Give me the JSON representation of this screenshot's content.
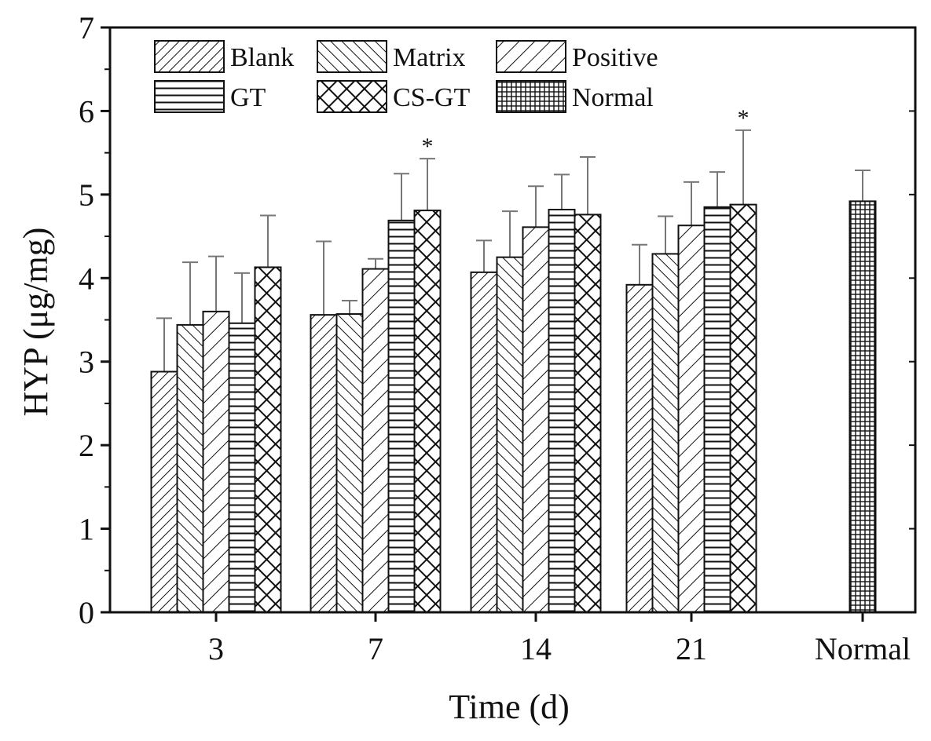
{
  "chart_data": {
    "type": "bar",
    "title": "",
    "xlabel": "Time (d)",
    "ylabel": "HYP (μg/mg)",
    "ylim": [
      0,
      7
    ],
    "yticks": [
      "0",
      "1",
      "2",
      "3",
      "4",
      "5",
      "6",
      "7"
    ],
    "categories": [
      "3",
      "7",
      "14",
      "21",
      "Normal"
    ],
    "legend_position": "top-left",
    "series": [
      {
        "name": "Blank",
        "pattern": "diag-right",
        "values": [
          2.88,
          3.56,
          4.07,
          3.92,
          null
        ],
        "errors": [
          0.64,
          0.88,
          0.38,
          0.48,
          null
        ]
      },
      {
        "name": "Matrix",
        "pattern": "diag-left",
        "values": [
          3.44,
          3.57,
          4.25,
          4.29,
          null
        ],
        "errors": [
          0.75,
          0.16,
          0.55,
          0.45,
          null
        ]
      },
      {
        "name": "Positive",
        "pattern": "diag-right-sparse",
        "values": [
          3.6,
          4.11,
          4.61,
          4.63,
          null
        ],
        "errors": [
          0.66,
          0.12,
          0.49,
          0.52,
          null
        ]
      },
      {
        "name": "GT",
        "pattern": "horizontal",
        "values": [
          3.46,
          4.69,
          4.82,
          4.85,
          null
        ],
        "errors": [
          0.6,
          0.56,
          0.42,
          0.42,
          null
        ]
      },
      {
        "name": "CS-GT",
        "pattern": "crosshatch",
        "values": [
          4.13,
          4.81,
          4.76,
          4.88,
          null
        ],
        "errors": [
          0.62,
          0.62,
          0.69,
          0.89,
          null
        ]
      },
      {
        "name": "Normal",
        "pattern": "grid",
        "values": [
          null,
          null,
          null,
          null,
          4.92
        ],
        "errors": [
          null,
          null,
          null,
          null,
          0.37
        ]
      }
    ],
    "annotations": [
      {
        "text": "*",
        "category": "7",
        "series": "CS-GT"
      },
      {
        "text": "*",
        "category": "21",
        "series": "CS-GT"
      }
    ]
  }
}
